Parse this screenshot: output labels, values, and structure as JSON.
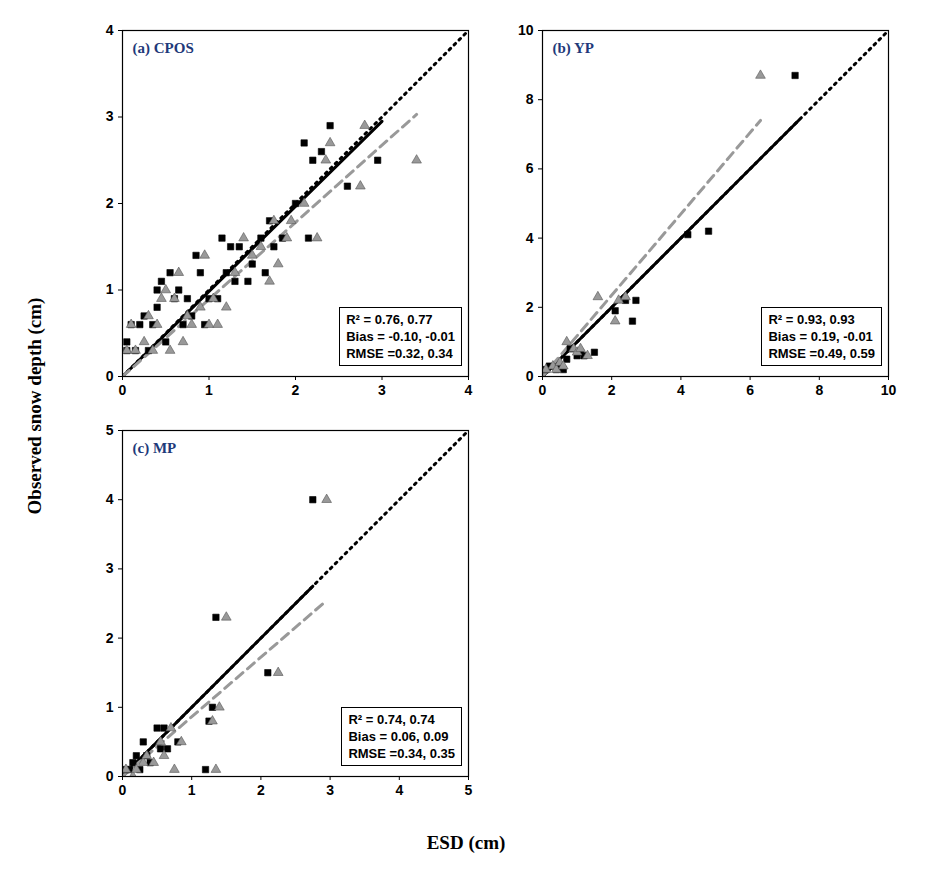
{
  "figure": {
    "x_label": "ESD (cm)",
    "y_label": "Observed snow depth (cm)"
  },
  "chart_data": [
    {
      "type": "scatter",
      "title": "(a) CPOS",
      "xlim": [
        0,
        4
      ],
      "ylim": [
        0,
        4
      ],
      "xticks": [
        0,
        1,
        2,
        3,
        4
      ],
      "yticks": [
        0,
        1,
        2,
        3,
        4
      ],
      "grid": false,
      "annotations": [
        "R² = 0.76, 0.77",
        "Bias = -0.10, -0.01",
        "RMSE =0.32, 0.34"
      ],
      "series": [
        {
          "type": "scatter",
          "marker": "square",
          "color": "#000000",
          "x": [
            0.05,
            0.05,
            0.1,
            0.15,
            0.2,
            0.25,
            0.3,
            0.35,
            0.4,
            0.4,
            0.45,
            0.5,
            0.55,
            0.6,
            0.65,
            0.7,
            0.75,
            0.8,
            0.85,
            0.9,
            0.95,
            1.0,
            1.1,
            1.15,
            1.2,
            1.25,
            1.3,
            1.35,
            1.45,
            1.5,
            1.6,
            1.65,
            1.7,
            1.75,
            1.85,
            2.0,
            2.1,
            2.15,
            2.2,
            2.3,
            2.4,
            2.6,
            2.95
          ],
          "y": [
            0.4,
            0.3,
            0.6,
            0.3,
            0.6,
            0.7,
            0.3,
            0.6,
            0.8,
            1.0,
            1.1,
            0.4,
            1.2,
            0.9,
            1.0,
            0.6,
            0.9,
            0.7,
            1.4,
            1.2,
            0.6,
            0.9,
            0.9,
            1.6,
            1.2,
            1.5,
            1.1,
            1.5,
            1.1,
            1.3,
            1.6,
            1.2,
            1.8,
            1.5,
            1.6,
            2.0,
            2.7,
            1.6,
            2.5,
            2.6,
            2.9,
            2.2,
            2.5
          ]
        },
        {
          "type": "scatter",
          "marker": "triangle",
          "color": "#999999",
          "x": [
            0.05,
            0.1,
            0.15,
            0.25,
            0.3,
            0.35,
            0.4,
            0.45,
            0.5,
            0.55,
            0.6,
            0.65,
            0.7,
            0.75,
            0.8,
            0.9,
            0.95,
            1.0,
            1.05,
            1.1,
            1.2,
            1.3,
            1.4,
            1.5,
            1.6,
            1.7,
            1.75,
            1.8,
            1.9,
            1.95,
            2.1,
            2.25,
            2.35,
            2.4,
            2.75,
            2.8,
            3.4
          ],
          "y": [
            0.3,
            0.6,
            0.3,
            0.4,
            0.7,
            0.3,
            0.6,
            0.9,
            1.0,
            0.3,
            0.9,
            1.2,
            0.4,
            0.7,
            0.6,
            0.8,
            1.4,
            0.6,
            0.9,
            0.6,
            0.8,
            1.2,
            1.6,
            1.4,
            1.5,
            1.1,
            1.8,
            1.3,
            1.6,
            1.8,
            2.0,
            1.6,
            2.5,
            2.7,
            2.2,
            2.9,
            2.5
          ]
        },
        {
          "type": "line",
          "line_style": "dotted",
          "color": "#000000",
          "x": [
            0,
            4
          ],
          "y": [
            0,
            4
          ]
        },
        {
          "type": "line",
          "line_style": "solid",
          "color": "#000000",
          "x": [
            0,
            3.0
          ],
          "y": [
            0,
            2.95
          ]
        },
        {
          "type": "line",
          "line_style": "dashed",
          "color": "#999999",
          "x": [
            0,
            3.4
          ],
          "y": [
            0,
            3.03
          ]
        }
      ]
    },
    {
      "type": "scatter",
      "title": "(b) YP",
      "xlim": [
        0,
        10
      ],
      "ylim": [
        0,
        10
      ],
      "xticks": [
        0,
        2,
        4,
        6,
        8,
        10
      ],
      "yticks": [
        0,
        2,
        4,
        6,
        8,
        10
      ],
      "grid": false,
      "annotations": [
        "R² = 0.93, 0.93",
        "Bias = 0.19, -0.01",
        "RMSE =0.49, 0.59"
      ],
      "series": [
        {
          "type": "scatter",
          "marker": "square",
          "color": "#000000",
          "x": [
            0.1,
            0.2,
            0.4,
            0.5,
            0.6,
            0.7,
            0.8,
            1.0,
            1.1,
            1.2,
            1.5,
            2.1,
            2.4,
            2.6,
            2.7,
            4.2,
            4.8,
            7.3
          ],
          "y": [
            0.2,
            0.3,
            0.2,
            0.3,
            0.2,
            0.5,
            0.8,
            0.6,
            0.7,
            0.6,
            0.7,
            1.9,
            2.2,
            1.6,
            2.2,
            4.1,
            4.2,
            8.7
          ]
        },
        {
          "type": "scatter",
          "marker": "triangle",
          "color": "#999999",
          "x": [
            0.1,
            0.3,
            0.4,
            0.5,
            0.6,
            0.7,
            0.9,
            1.0,
            1.1,
            1.3,
            1.6,
            2.1,
            2.2,
            2.4,
            6.3
          ],
          "y": [
            0.2,
            0.3,
            0.2,
            0.4,
            0.3,
            1.0,
            0.8,
            0.7,
            0.8,
            0.6,
            2.3,
            1.6,
            2.2,
            2.3,
            8.7
          ]
        },
        {
          "type": "line",
          "line_style": "dotted",
          "color": "#000000",
          "x": [
            0,
            10
          ],
          "y": [
            0,
            10
          ]
        },
        {
          "type": "line",
          "line_style": "solid",
          "color": "#000000",
          "x": [
            0,
            7.4
          ],
          "y": [
            0,
            7.4
          ]
        },
        {
          "type": "line",
          "line_style": "dashed",
          "color": "#999999",
          "x": [
            0,
            6.3
          ],
          "y": [
            0,
            7.4
          ]
        }
      ]
    },
    {
      "type": "scatter",
      "title": "(c) MP",
      "xlim": [
        0,
        5
      ],
      "ylim": [
        0,
        5
      ],
      "xticks": [
        0,
        1,
        2,
        3,
        4,
        5
      ],
      "yticks": [
        0,
        1,
        2,
        3,
        4,
        5
      ],
      "grid": false,
      "annotations": [
        "R² = 0.74, 0.74",
        "Bias = 0.06, 0.09",
        "RMSE =0.34, 0.35"
      ],
      "series": [
        {
          "type": "scatter",
          "marker": "square",
          "color": "#000000",
          "x": [
            0.05,
            0.1,
            0.15,
            0.2,
            0.25,
            0.3,
            0.35,
            0.4,
            0.5,
            0.55,
            0.6,
            0.65,
            0.8,
            1.2,
            1.25,
            1.3,
            1.35,
            2.1,
            2.75
          ],
          "y": [
            0.1,
            0.1,
            0.2,
            0.3,
            0.1,
            0.5,
            0.3,
            0.2,
            0.7,
            0.4,
            0.7,
            0.4,
            0.5,
            0.1,
            0.8,
            1.0,
            2.3,
            1.5,
            4.0
          ]
        },
        {
          "type": "scatter",
          "marker": "triangle",
          "color": "#999999",
          "x": [
            0.05,
            0.15,
            0.2,
            0.3,
            0.35,
            0.45,
            0.55,
            0.6,
            0.7,
            0.75,
            0.85,
            1.3,
            1.35,
            1.4,
            1.5,
            2.25,
            2.95
          ],
          "y": [
            0.1,
            0.0,
            0.1,
            0.2,
            0.3,
            0.2,
            0.5,
            0.3,
            0.7,
            0.1,
            0.5,
            0.8,
            0.1,
            1.0,
            2.3,
            1.5,
            4.0
          ]
        },
        {
          "type": "line",
          "line_style": "dotted",
          "color": "#000000",
          "x": [
            0,
            5
          ],
          "y": [
            0,
            5
          ]
        },
        {
          "type": "line",
          "line_style": "solid",
          "color": "#000000",
          "x": [
            0,
            2.75
          ],
          "y": [
            0,
            2.75
          ]
        },
        {
          "type": "line",
          "line_style": "dashed",
          "color": "#999999",
          "x": [
            0,
            2.9
          ],
          "y": [
            0,
            2.5
          ]
        }
      ]
    }
  ]
}
